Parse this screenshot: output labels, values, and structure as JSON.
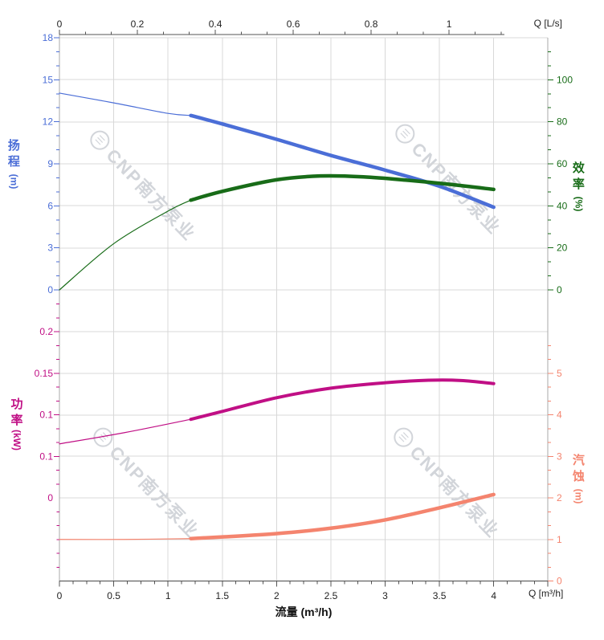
{
  "watermark": {
    "text": "CNP南方泵业",
    "logo_glyph": "☰"
  },
  "colors": {
    "head": "#4b6ed7",
    "efficiency": "#186c18",
    "power": "#c00f85",
    "npsh": "#f4846e",
    "grid": "#d8d8d8",
    "ruler": "#aaaaaa",
    "axis_dark": "#555555",
    "text_dark": "#222222"
  },
  "axes": {
    "flow_ls": {
      "unit_label": "Q [L/s]",
      "labels": [
        "0",
        "0.2",
        "0.4",
        "0.6",
        "0.8",
        "1"
      ],
      "values": [
        0,
        0.2,
        0.4,
        0.6,
        0.8,
        1
      ]
    },
    "flow_m3h": {
      "unit_label": "Q [m³/h]",
      "title": "流量 (m³/h)",
      "labels": [
        "0",
        "0.5",
        "1",
        "1.5",
        "2",
        "2.5",
        "3",
        "3.5",
        "4"
      ],
      "values": [
        0,
        0.5,
        1,
        1.5,
        2,
        2.5,
        3,
        3.5,
        4
      ]
    },
    "head": {
      "title_cjk": "扬程",
      "title_unit": "(m)",
      "labels": [
        "18",
        "15",
        "12",
        "9",
        "6",
        "3",
        "0"
      ],
      "values": [
        18,
        15,
        12,
        9,
        6,
        3,
        0
      ]
    },
    "efficiency": {
      "title_cjk": "效率",
      "title_unit": "(%)",
      "labels": [
        "100",
        "80",
        "60",
        "40",
        "20",
        "0"
      ],
      "values": [
        100,
        80,
        60,
        40,
        20,
        0
      ]
    },
    "power": {
      "title_cjk": "功率",
      "title_unit": "(kW)",
      "labels": [
        "0.2",
        "0.15",
        "0.1",
        "0.1",
        "0"
      ],
      "values": [
        0.2,
        0.15,
        0.1,
        0.05,
        0
      ]
    },
    "npsh": {
      "title_cjk": "汽蚀",
      "title_unit": "(m)",
      "labels": [
        "5",
        "4",
        "3",
        "2",
        "1",
        "0"
      ],
      "values": [
        5,
        4,
        3,
        2,
        1,
        0
      ]
    }
  },
  "chart_data": [
    {
      "type": "line",
      "title": "Pump head and efficiency vs flow",
      "xlabel": "流量 (m³/h)",
      "x2label": "Q [L/s]",
      "xlim": [
        0,
        4.5
      ],
      "grid": true,
      "series": [
        {
          "name": "扬程 (Head)",
          "value_axis": "head",
          "unit": "m",
          "ylim": [
            0,
            18
          ],
          "color": "#4b6ed7",
          "thin_until": 1.21,
          "x": [
            0,
            0.5,
            1,
            1.21,
            1.5,
            2,
            2.5,
            3,
            3.5,
            4
          ],
          "y": [
            14.05,
            13.35,
            12.6,
            12.45,
            11.85,
            10.75,
            9.6,
            8.55,
            7.4,
            5.9
          ]
        },
        {
          "name": "效率 (Efficiency)",
          "value_axis": "efficiency",
          "unit": "%",
          "ylim": [
            0,
            120
          ],
          "color": "#186c18",
          "thin_until": 1.21,
          "x": [
            0,
            0.5,
            1,
            1.21,
            1.5,
            2,
            2.4,
            2.8,
            3.2,
            3.6,
            4
          ],
          "y": [
            0,
            22,
            37.5,
            42.7,
            46.9,
            52.4,
            54.2,
            53.8,
            52.2,
            50.2,
            47.8
          ]
        }
      ]
    },
    {
      "type": "line",
      "title": "Pump power and NPSH vs flow",
      "xlabel": "流量 (m³/h)",
      "xlim": [
        0,
        4.5
      ],
      "grid": true,
      "series": [
        {
          "name": "功率 (Power)",
          "value_axis": "power",
          "unit": "kW",
          "ylim": [
            0,
            0.25
          ],
          "color": "#c00f85",
          "thin_until": 1.21,
          "x": [
            0,
            0.6,
            1.21,
            1.5,
            2,
            2.5,
            3,
            3.4,
            3.7,
            4
          ],
          "y": [
            0.065,
            0.0785,
            0.0945,
            0.104,
            0.1205,
            0.132,
            0.1385,
            0.1415,
            0.1412,
            0.1375
          ]
        },
        {
          "name": "汽蚀 (NPSH)",
          "value_axis": "npsh",
          "unit": "m",
          "ylim": [
            0,
            6
          ],
          "color": "#f4846e",
          "thin_until": 1.21,
          "x": [
            0,
            0.6,
            1.21,
            1.5,
            2,
            2.5,
            3,
            3.5,
            4
          ],
          "y": [
            1.0,
            1.0,
            1.02,
            1.06,
            1.14,
            1.27,
            1.47,
            1.76,
            2.08
          ]
        }
      ]
    }
  ]
}
